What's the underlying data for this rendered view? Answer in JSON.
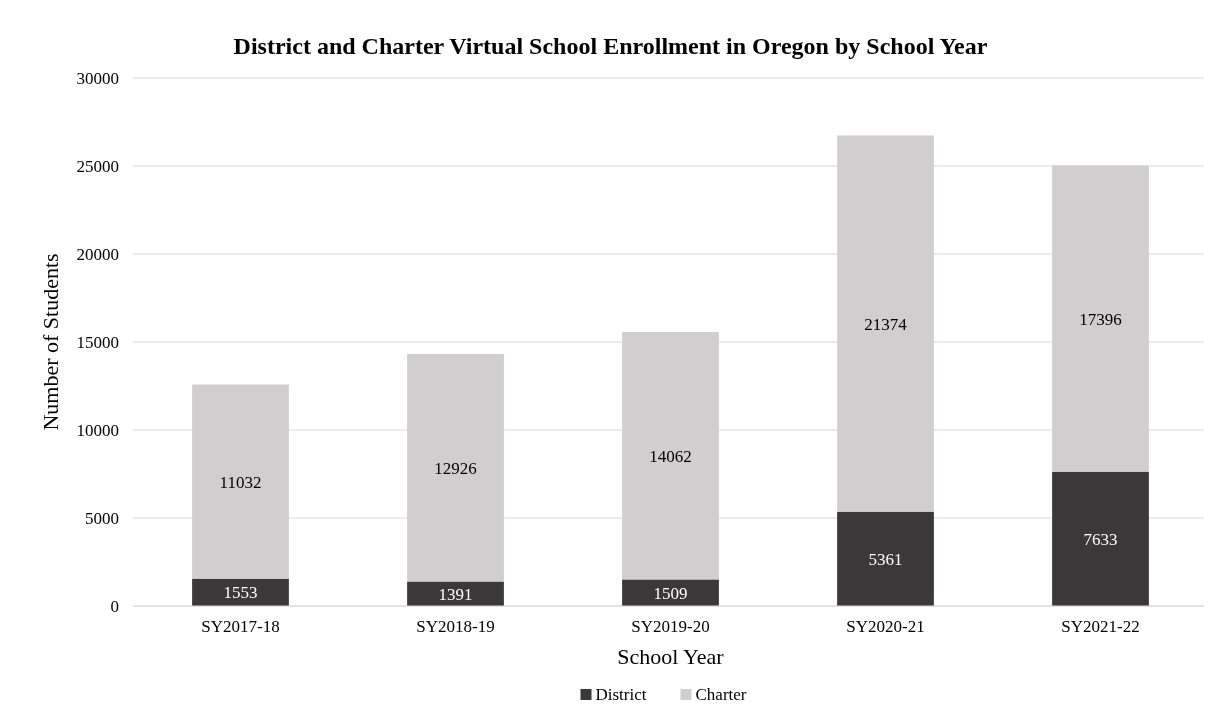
{
  "chart_data": {
    "type": "bar",
    "title": "District and Charter Virtual School Enrollment in Oregon by School Year",
    "xlabel": "School Year",
    "ylabel": "Number of Students",
    "categories": [
      "SY2017-18",
      "SY2018-19",
      "SY2019-20",
      "SY2020-21",
      "SY2021-22"
    ],
    "stacked": true,
    "series": [
      {
        "name": "District",
        "color": "#3a3838",
        "values": [
          1553,
          1391,
          1509,
          5361,
          7633
        ]
      },
      {
        "name": "Charter",
        "color": "#d0cece",
        "values": [
          11032,
          12926,
          14062,
          21374,
          17396
        ]
      }
    ],
    "ylim": [
      0,
      30000
    ],
    "yticks": [
      0,
      5000,
      10000,
      15000,
      20000,
      25000,
      30000
    ],
    "grid": "y",
    "legend": "bottom",
    "data_labels": true
  }
}
